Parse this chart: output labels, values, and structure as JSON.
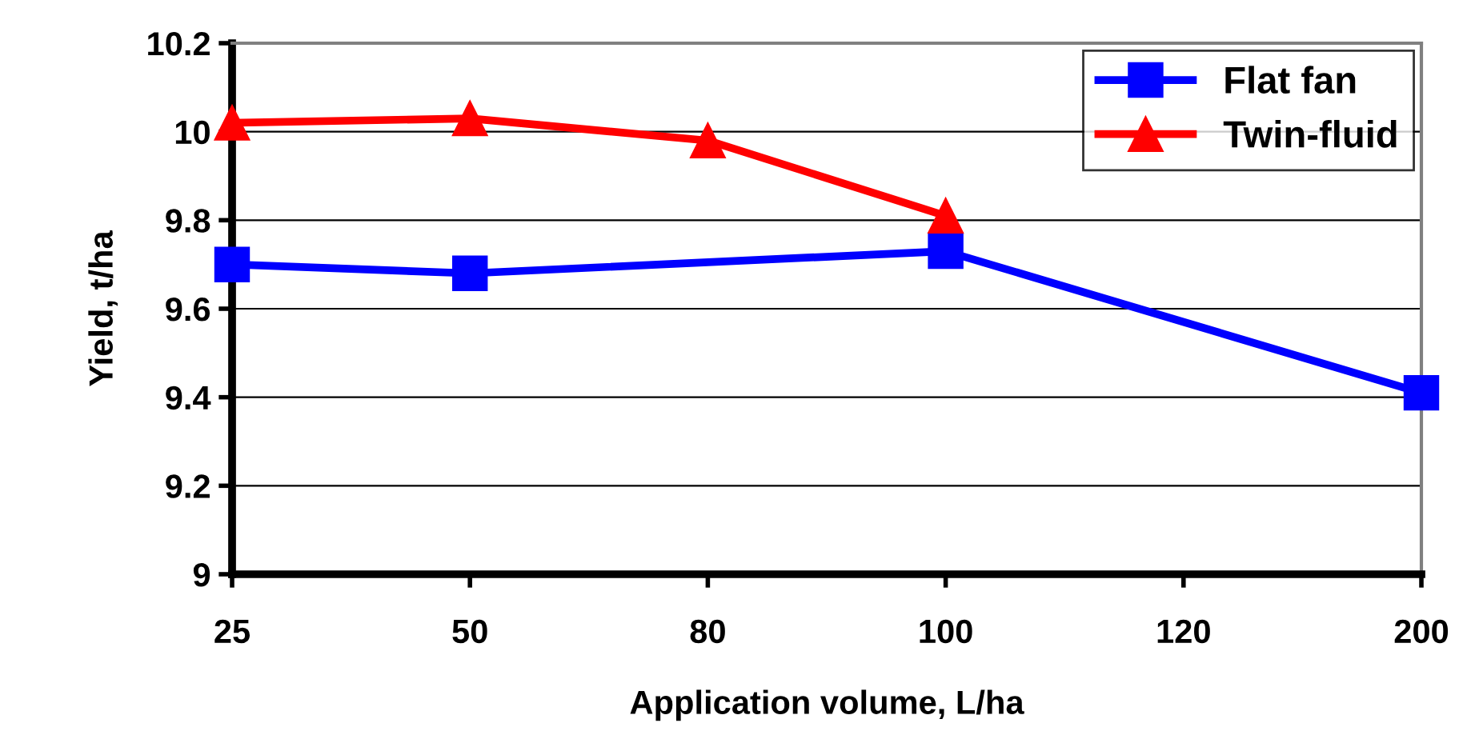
{
  "chart_data": {
    "type": "line",
    "xlabel": "Application volume, L/ha",
    "ylabel": "Yield, t/ha",
    "categories": [
      "25",
      "50",
      "80",
      "100",
      "120",
      "200"
    ],
    "series": [
      {
        "name": "Flat fan",
        "color": "#0000ff",
        "marker": "square",
        "values": [
          9.7,
          9.68,
          null,
          9.73,
          null,
          9.41
        ]
      },
      {
        "name": "Twin-fluid",
        "color": "#ff0000",
        "marker": "triangle",
        "values": [
          10.02,
          10.03,
          9.98,
          9.81,
          null,
          null
        ]
      }
    ],
    "ylim": [
      9,
      10.2
    ],
    "yticks": [
      9,
      9.2,
      9.4,
      9.6,
      9.8,
      10,
      10.2
    ],
    "grid": "y",
    "legend": "top right",
    "line_style": "solid"
  }
}
